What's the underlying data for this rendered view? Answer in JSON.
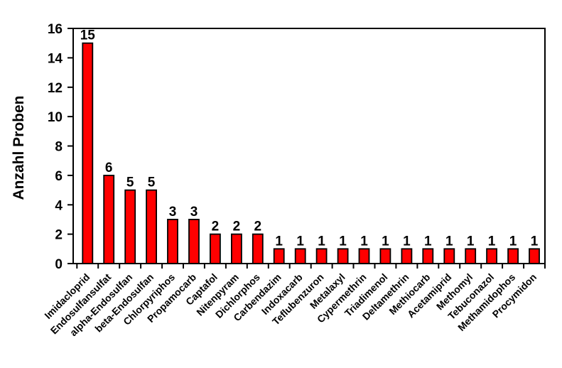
{
  "figure": {
    "background_color": "#FFFFFF"
  },
  "chart_data": {
    "type": "bar",
    "title": "",
    "ylabel": "Anzahl Proben",
    "xlabel": "",
    "categories": [
      "Imidacloprid",
      "Endosulfansulfat",
      "alpha-Endosulfan",
      "beta-Endosulfan",
      "Chlorpyriphos",
      "Propamocarb",
      "Captafol",
      "Nitenpyram",
      "Dichlorphos",
      "Carbendazim",
      "Indoxacarb",
      "Teflubenzuron",
      "Metalaxyl",
      "Cypermethrin",
      "Triadimenol",
      "Deltamethrin",
      "Methiocarb",
      "Acetamiprid",
      "Methomyl",
      "Tebuconazol",
      "Methamidophos",
      "Procymidon"
    ],
    "values": [
      15,
      6,
      5,
      5,
      3,
      3,
      2,
      2,
      2,
      1,
      1,
      1,
      1,
      1,
      1,
      1,
      1,
      1,
      1,
      1,
      1,
      1
    ],
    "value_labels_shown": true,
    "ylim": [
      0,
      16
    ],
    "ytick_step": 2,
    "yticks": [
      0,
      2,
      4,
      6,
      8,
      10,
      12,
      14,
      16
    ],
    "grid": "off",
    "legend": "none",
    "x_label_rotation_deg": 45,
    "bar_fill_color": "#FF0000",
    "bar_border_color": "#000000",
    "axis_color": "#000000",
    "text_color": "#000000"
  }
}
